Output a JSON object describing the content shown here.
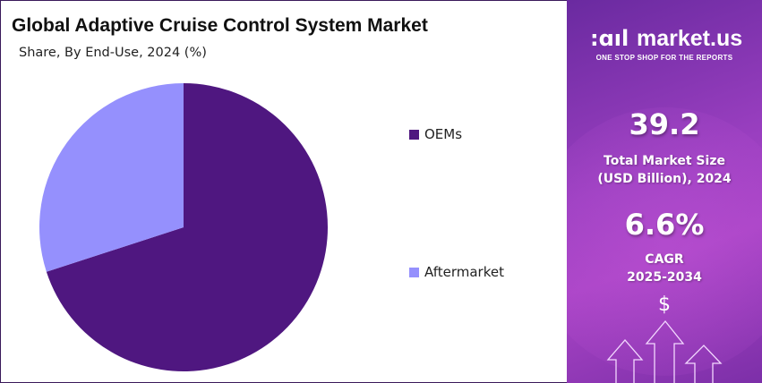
{
  "chart_data": {
    "type": "pie",
    "title": "Global Adaptive Cruise Control System Market",
    "subtitle": "Share, By End-Use, 2024 (%)",
    "categories": [
      "OEMs",
      "Aftermarket"
    ],
    "values": [
      70.0,
      30.0
    ],
    "colors": [
      "#4f1780",
      "#9590fd"
    ],
    "legend_position": "right"
  },
  "sidebar": {
    "logo_text": "market.us",
    "logo_tagline": "ONE STOP SHOP FOR THE REPORTS",
    "market_size_value": "39.2",
    "market_size_label_1": "Total Market Size",
    "market_size_label_2": "(USD Billion), 2024",
    "cagr_value": "6.6%",
    "cagr_label_1": "CAGR",
    "cagr_label_2": "2025-2034",
    "dollar_symbol": "$",
    "icons": [
      "market-us-logo-icon",
      "dollar-icon",
      "up-arrow-icon"
    ]
  }
}
